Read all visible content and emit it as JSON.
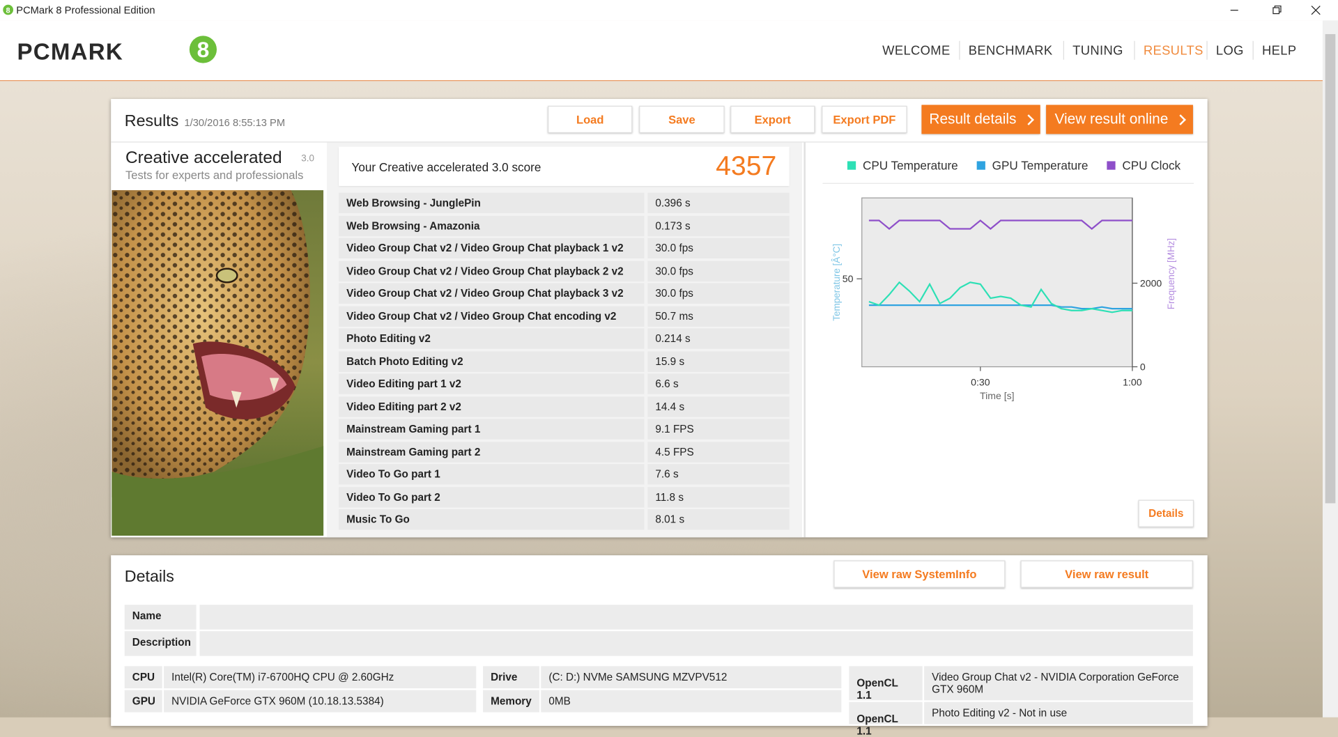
{
  "window": {
    "title": "PCMark 8 Professional Edition"
  },
  "header": {
    "logo": "PCMARK",
    "logo_badge": "8",
    "nav": [
      "WELCOME",
      "BENCHMARK",
      "TUNING",
      "RESULTS",
      "LOG",
      "HELP"
    ]
  },
  "results": {
    "title": "Results",
    "date": "1/30/2016 8:55:13 PM",
    "buttons": [
      "Load",
      "Save",
      "Export",
      "Export PDF"
    ],
    "primary_buttons": [
      "Result details",
      "View result online"
    ]
  },
  "test": {
    "name": "Creative accelerated",
    "version": "3.0",
    "description": "Tests for experts and professionals"
  },
  "score": {
    "label": "Your Creative accelerated 3.0 score",
    "value": 4357
  },
  "scores": {
    "rows": [
      [
        "Web Browsing - JunglePin",
        "0.396 s"
      ],
      [
        "Web Browsing - Amazonia",
        "0.173 s"
      ],
      [
        "Video Group Chat v2 / Video Group Chat playback 1 v2",
        "30.0 fps"
      ],
      [
        "Video Group Chat v2 / Video Group Chat playback 2 v2",
        "30.0 fps"
      ],
      [
        "Video Group Chat v2 / Video Group Chat playback 3 v2",
        "30.0 fps"
      ],
      [
        "Video Group Chat v2 / Video Group Chat encoding v2",
        "50.7 ms"
      ],
      [
        "Photo Editing v2",
        "0.214 s"
      ],
      [
        "Batch Photo Editing v2",
        "15.9 s"
      ],
      [
        "Video Editing part 1 v2",
        "6.6 s"
      ],
      [
        "Video Editing part 2 v2",
        "14.4 s"
      ],
      [
        "Mainstream Gaming part 1",
        "9.1 FPS"
      ],
      [
        "Mainstream Gaming part 2",
        "4.5 FPS"
      ],
      [
        "Video To Go part 1",
        "7.6 s"
      ],
      [
        "Video To Go part 2",
        "11.8 s"
      ],
      [
        "Music To Go",
        "8.01 s"
      ]
    ]
  },
  "chart_data": {
    "type": "line",
    "x": [
      8,
      10,
      12,
      14,
      16,
      18,
      20,
      22,
      24,
      26,
      28,
      30,
      32,
      34,
      36,
      38,
      40,
      42,
      44,
      46,
      48,
      50,
      52,
      54,
      56,
      58,
      60
    ],
    "xlim": [
      6.6,
      60
    ],
    "xticks": [
      {
        "value": 30,
        "label": "0:30"
      },
      {
        "value": 60,
        "label": "1:00"
      }
    ],
    "xlabel": "Time [s]",
    "ylabel": "Temperature [Â°C]",
    "y2label": "Frequency [MHz]",
    "ylim": [
      0,
      96
    ],
    "yticks": [
      50
    ],
    "y2lim": [
      0,
      4040
    ],
    "y2ticks": [
      0,
      2000
    ],
    "legend": "top",
    "series": [
      {
        "name": "CPU Temperature",
        "color": "#2de0b5",
        "values": [
          37,
          35,
          41,
          48,
          43,
          37,
          47,
          36,
          39,
          45,
          48,
          47,
          39,
          40,
          39,
          35,
          34,
          44,
          36,
          33,
          32,
          32,
          33,
          32,
          31,
          32,
          32
        ]
      },
      {
        "name": "GPU Temperature",
        "color": "#2fa3e0",
        "values": [
          35,
          35,
          35,
          35,
          35,
          35,
          35,
          35,
          35,
          35,
          35,
          35,
          35,
          35,
          35,
          35,
          35,
          35,
          35,
          34,
          34,
          33,
          33,
          34,
          33,
          33,
          33
        ]
      },
      {
        "name": "CPU Clock",
        "color": "#8e4fc9",
        "axis": "y2",
        "values": [
          3500,
          3500,
          3300,
          3500,
          3500,
          3500,
          3500,
          3500,
          3300,
          3300,
          3300,
          3500,
          3300,
          3500,
          3500,
          3500,
          3500,
          3500,
          3500,
          3500,
          3500,
          3500,
          3300,
          3500,
          3500,
          3500,
          3500
        ]
      }
    ]
  },
  "chart_button": "Details",
  "details": {
    "title": "Details",
    "buttons": [
      "View raw SystemInfo",
      "View raw result"
    ],
    "fields": [
      "Name",
      "Description"
    ],
    "system": [
      [
        [
          "CPU",
          "Intel(R) Core(TM) i7-6700HQ CPU @ 2.60GHz"
        ],
        [
          "GPU",
          "NVIDIA GeForce GTX 960M (10.18.13.5384)"
        ]
      ],
      [
        [
          "Drive",
          "(C: D:) NVMe SAMSUNG MZVPV512"
        ],
        [
          "Memory",
          "0MB"
        ]
      ],
      [
        [
          "OpenCL 1.1",
          "Video Group Chat v2 - NVIDIA Corporation GeForce GTX 960M"
        ],
        [
          "OpenCL 1.1",
          "Photo Editing v2 - Not in use"
        ]
      ]
    ]
  }
}
